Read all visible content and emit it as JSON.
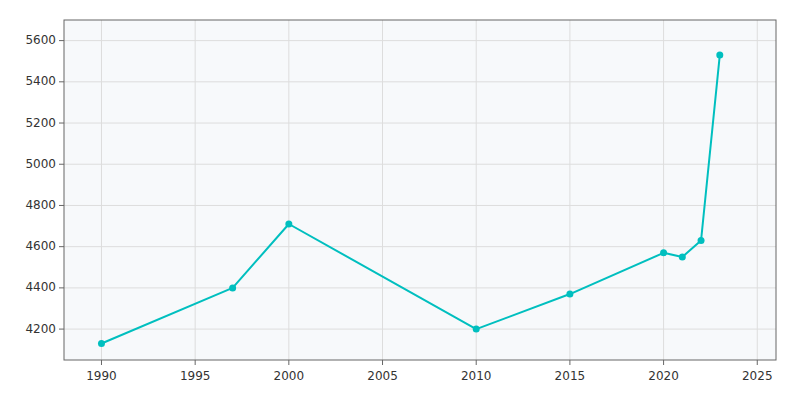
{
  "chart_data": {
    "type": "line",
    "x": [
      1990,
      1997,
      2000,
      2010,
      2015,
      2020,
      2021,
      2022,
      2023
    ],
    "values": [
      4130,
      4400,
      4710,
      4200,
      4370,
      4570,
      4550,
      4630,
      5530
    ],
    "color": "#00BFBF",
    "marker": "circle",
    "xlim": [
      1988,
      2026
    ],
    "ylim": [
      4050,
      5700
    ],
    "xticks": [
      1990,
      1995,
      2000,
      2005,
      2010,
      2015,
      2020,
      2025
    ],
    "yticks": [
      4200,
      4400,
      4600,
      4800,
      5000,
      5200,
      5400,
      5600
    ],
    "grid": true
  }
}
